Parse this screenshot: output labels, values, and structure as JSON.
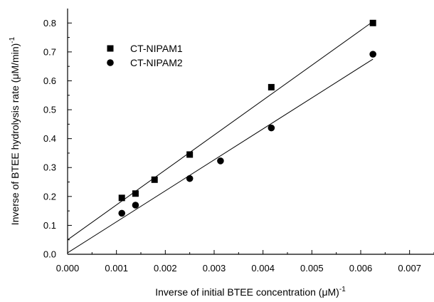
{
  "chart_data": {
    "type": "scatter",
    "xlabel": "Inverse of initial BTEE concentration (μM)",
    "xlabel_sup": "-1",
    "ylabel": "Inverse of BTEE hydrolysis rate (μM/min)",
    "ylabel_sup": "-1",
    "xlim": [
      0.0,
      0.0075
    ],
    "ylim": [
      0.0,
      0.85
    ],
    "x_ticks": [
      "0.000",
      "0.001",
      "0.002",
      "0.003",
      "0.004",
      "0.005",
      "0.006",
      "0.007"
    ],
    "y_ticks": [
      "0.0",
      "0.1",
      "0.2",
      "0.3",
      "0.4",
      "0.5",
      "0.6",
      "0.7",
      "0.8"
    ],
    "grid": false,
    "legend_position": "top-left",
    "series": [
      {
        "name": "CT-NIPAM1",
        "marker": "square",
        "color": "#000000",
        "points": [
          [
            0.00111,
            0.195
          ],
          [
            0.00139,
            0.21
          ],
          [
            0.00178,
            0.258
          ],
          [
            0.0025,
            0.345
          ],
          [
            0.00417,
            0.578
          ],
          [
            0.00625,
            0.8
          ]
        ],
        "fit_line": [
          [
            0.0,
            0.05
          ],
          [
            0.00625,
            0.805
          ]
        ]
      },
      {
        "name": "CT-NIPAM2",
        "marker": "circle",
        "color": "#000000",
        "points": [
          [
            0.00111,
            0.142
          ],
          [
            0.00139,
            0.17
          ],
          [
            0.0025,
            0.262
          ],
          [
            0.00313,
            0.323
          ],
          [
            0.00417,
            0.437
          ],
          [
            0.00625,
            0.692
          ]
        ],
        "fit_line": [
          [
            0.0,
            0.005
          ],
          [
            0.00625,
            0.675
          ]
        ]
      }
    ]
  }
}
